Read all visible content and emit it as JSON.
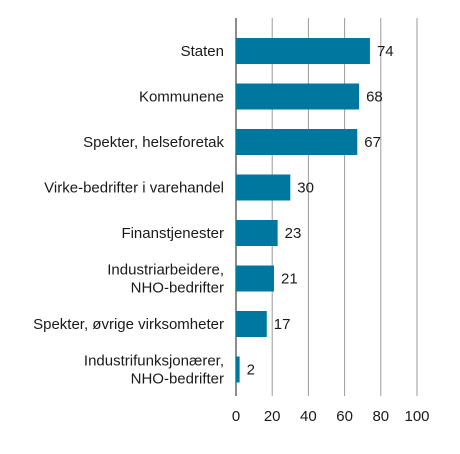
{
  "chart_data": {
    "type": "bar",
    "orientation": "horizontal",
    "categories": [
      [
        "Staten"
      ],
      [
        "Kommunene"
      ],
      [
        "Spekter, helseforetak"
      ],
      [
        "Virke-bedrifter i varehandel"
      ],
      [
        "Finanstjenester"
      ],
      [
        "Industriarbeidere,",
        "NHO-bedrifter"
      ],
      [
        "Spekter, øvrige virksomheter"
      ],
      [
        "Industrifunksjonærer,",
        "NHO-bedrifter"
      ]
    ],
    "values": [
      74,
      68,
      67,
      30,
      23,
      21,
      17,
      2
    ],
    "xlim": [
      0,
      100
    ],
    "xticks": [
      "0",
      "20",
      "40",
      "60",
      "80",
      "100"
    ],
    "grid": "vertical",
    "bar_color": "#00779f"
  }
}
